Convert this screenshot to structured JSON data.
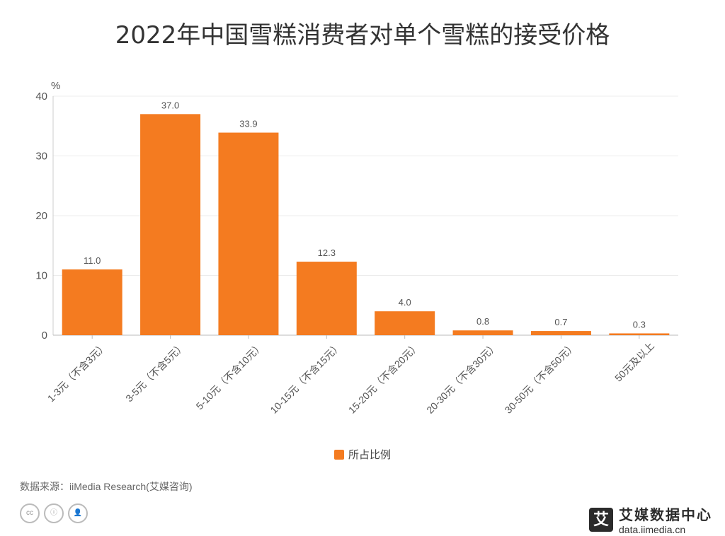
{
  "chart_data": {
    "type": "bar",
    "title": "2022年中国雪糕消费者对单个雪糕的接受价格",
    "ylabel": "%",
    "ylim": [
      0,
      40
    ],
    "yticks": [
      0,
      10,
      20,
      30,
      40
    ],
    "categories": [
      "1-3元（不含3元）",
      "3-5元（不含5元）",
      "5-10元（不含10元）",
      "10-15元（不含15元）",
      "15-20元（不含20元）",
      "20-30元（不含30元）",
      "30-50元（不含50元）",
      "50元及以上"
    ],
    "series": [
      {
        "name": "所占比例",
        "values": [
          11.0,
          37.0,
          33.9,
          12.3,
          4.0,
          0.8,
          0.7,
          0.3
        ]
      }
    ],
    "legend_position": "bottom-center",
    "grid": true,
    "bar_color": "#F47B20"
  },
  "footer": {
    "source": "数据来源：iiMedia Research(艾媒咨询)",
    "logo_mark": "艾",
    "logo_name": "艾媒数据中心",
    "logo_url": "data.iimedia.cn"
  },
  "icons": [
    "cc-icon",
    "by-icon",
    "person-icon"
  ]
}
